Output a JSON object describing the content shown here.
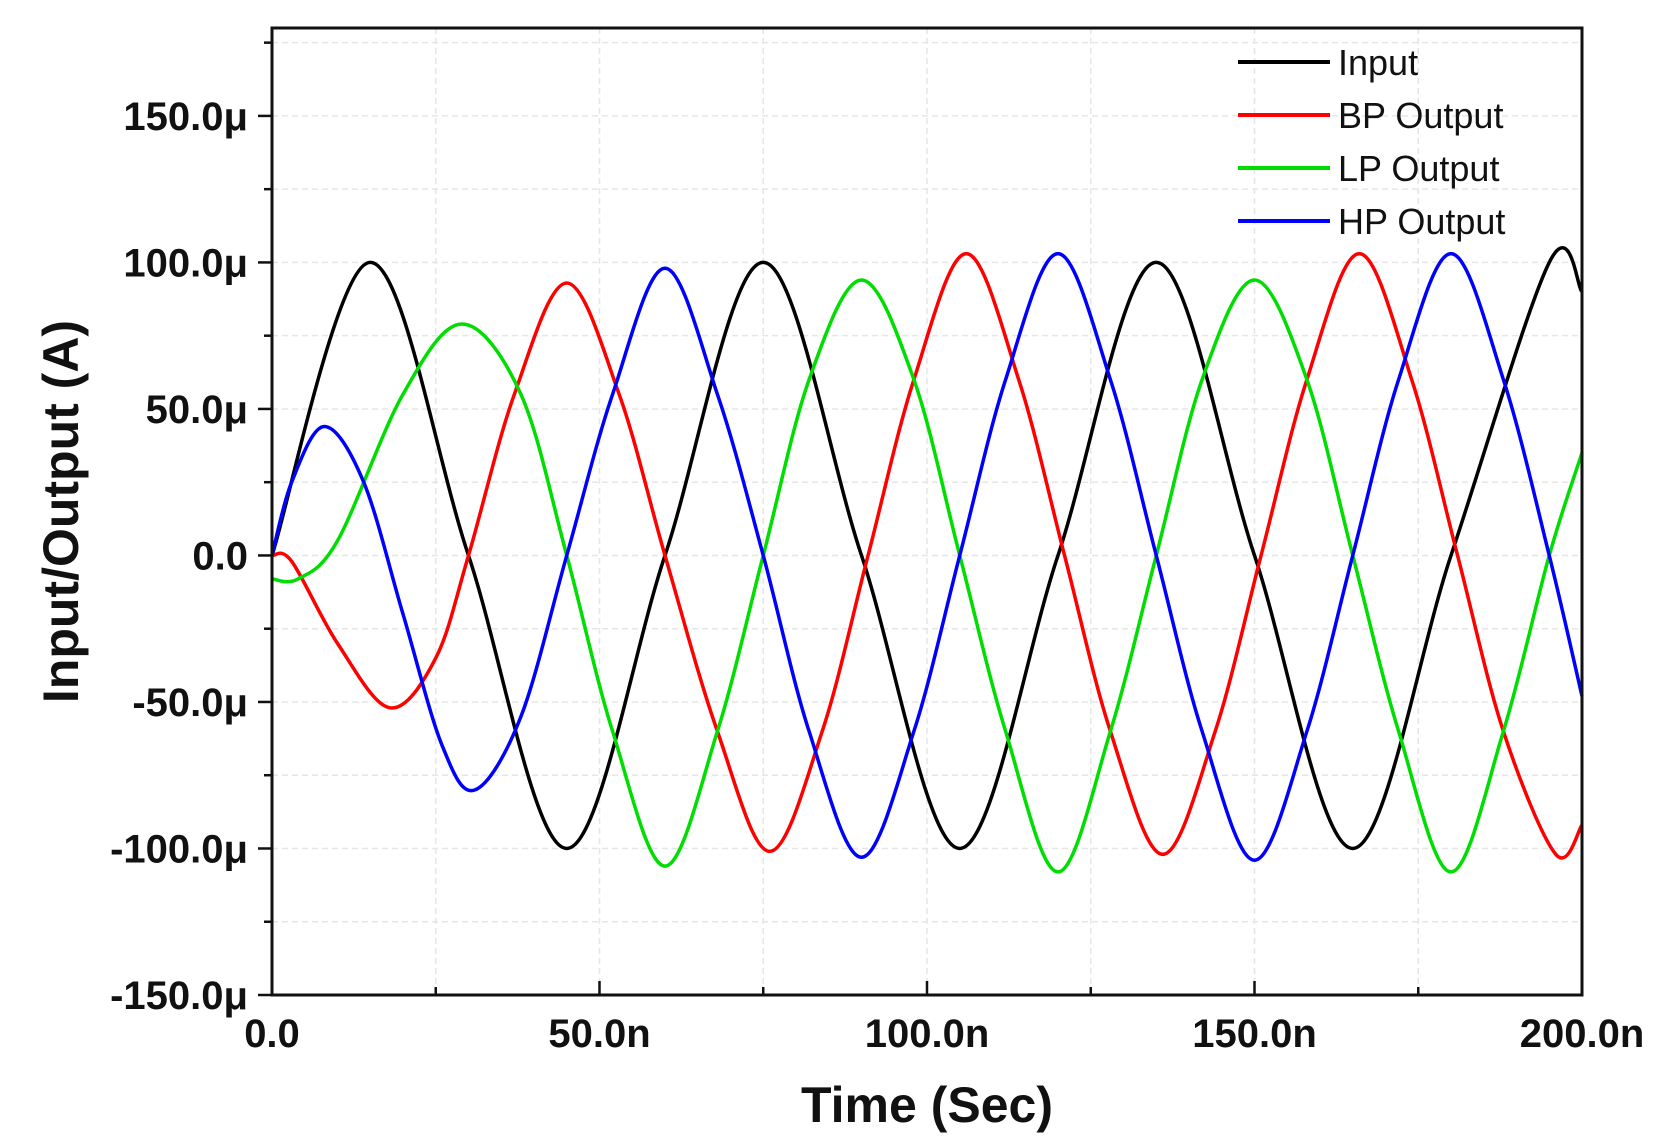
{
  "chart_data": {
    "type": "line",
    "title": "",
    "xlabel": "Time (Sec)",
    "ylabel": "Input/Output (A)",
    "x_unit_scale": 1e-09,
    "y_unit_scale": 1e-06,
    "xlim": [
      0,
      200
    ],
    "ylim": [
      -150,
      180
    ],
    "x_ticks": [
      0,
      50,
      100,
      150,
      200
    ],
    "x_tick_labels": [
      "0.0",
      "50.0n",
      "100.0n",
      "150.0n",
      "200.0n"
    ],
    "y_ticks": [
      -150,
      -100,
      -50,
      0,
      50,
      100,
      150
    ],
    "y_tick_labels": [
      "-150.0μ",
      "-100.0μ",
      "-50.0μ",
      "0.0",
      "50.0μ",
      "100.0μ",
      "150.0μ"
    ],
    "grid": true,
    "legend_position": "top-right",
    "series": [
      {
        "name": "Input",
        "color": "#000000",
        "points": [
          [
            0,
            0
          ],
          [
            15,
            100
          ],
          [
            30,
            0
          ],
          [
            45,
            -100
          ],
          [
            60,
            0
          ],
          [
            75,
            100
          ],
          [
            90,
            0
          ],
          [
            105,
            -100
          ],
          [
            120,
            0
          ],
          [
            135,
            100
          ],
          [
            150,
            0
          ],
          [
            165,
            -100
          ],
          [
            180,
            0
          ],
          [
            195,
            100
          ],
          [
            200,
            90
          ]
        ]
      },
      {
        "name": "BP Output",
        "color": "#ff0000",
        "points": [
          [
            0,
            0
          ],
          [
            3,
            -2
          ],
          [
            10,
            -30
          ],
          [
            18,
            -52
          ],
          [
            25,
            -35
          ],
          [
            30,
            0
          ],
          [
            37,
            55
          ],
          [
            45,
            93
          ],
          [
            53,
            55
          ],
          [
            60,
            0
          ],
          [
            68,
            -60
          ],
          [
            76,
            -101
          ],
          [
            84,
            -60
          ],
          [
            91,
            0
          ],
          [
            98,
            60
          ],
          [
            106,
            103
          ],
          [
            114,
            60
          ],
          [
            121,
            0
          ],
          [
            128,
            -60
          ],
          [
            136,
            -102
          ],
          [
            144,
            -60
          ],
          [
            151,
            0
          ],
          [
            158,
            60
          ],
          [
            166,
            103
          ],
          [
            174,
            60
          ],
          [
            181,
            0
          ],
          [
            188,
            -60
          ],
          [
            196,
            -102
          ],
          [
            200,
            -92
          ]
        ]
      },
      {
        "name": "LP Output",
        "color": "#00dd00",
        "points": [
          [
            0,
            -8
          ],
          [
            4,
            -8
          ],
          [
            10,
            5
          ],
          [
            20,
            55
          ],
          [
            29,
            79
          ],
          [
            38,
            55
          ],
          [
            45,
            0
          ],
          [
            52,
            -60
          ],
          [
            60,
            -106
          ],
          [
            68,
            -60
          ],
          [
            75,
            0
          ],
          [
            82,
            60
          ],
          [
            90,
            94
          ],
          [
            98,
            60
          ],
          [
            105,
            0
          ],
          [
            112,
            -60
          ],
          [
            120,
            -108
          ],
          [
            128,
            -60
          ],
          [
            135,
            0
          ],
          [
            142,
            60
          ],
          [
            150,
            94
          ],
          [
            158,
            60
          ],
          [
            165,
            0
          ],
          [
            172,
            -60
          ],
          [
            180,
            -108
          ],
          [
            188,
            -60
          ],
          [
            195,
            0
          ],
          [
            200,
            35
          ]
        ]
      },
      {
        "name": "HP Output",
        "color": "#0000ff",
        "points": [
          [
            0,
            0
          ],
          [
            3,
            25
          ],
          [
            8,
            44
          ],
          [
            14,
            25
          ],
          [
            20,
            -20
          ],
          [
            26,
            -65
          ],
          [
            31,
            -80
          ],
          [
            38,
            -55
          ],
          [
            45,
            0
          ],
          [
            52,
            55
          ],
          [
            60,
            98
          ],
          [
            68,
            55
          ],
          [
            75,
            0
          ],
          [
            82,
            -60
          ],
          [
            90,
            -103
          ],
          [
            98,
            -60
          ],
          [
            105,
            0
          ],
          [
            112,
            60
          ],
          [
            120,
            103
          ],
          [
            128,
            60
          ],
          [
            135,
            0
          ],
          [
            142,
            -60
          ],
          [
            150,
            -104
          ],
          [
            158,
            -60
          ],
          [
            165,
            0
          ],
          [
            172,
            60
          ],
          [
            180,
            103
          ],
          [
            188,
            60
          ],
          [
            195,
            0
          ],
          [
            200,
            -48
          ]
        ]
      }
    ]
  }
}
